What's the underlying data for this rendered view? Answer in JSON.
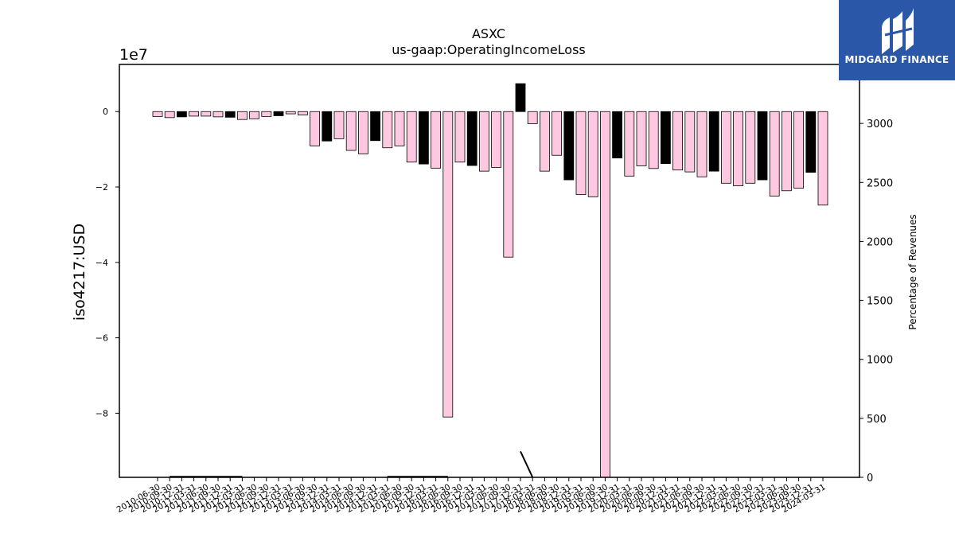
{
  "chart_data": {
    "type": "bar",
    "title": "ASXC",
    "subtitle": "us-gaap:OperatingIncomeLoss",
    "ylabel": "iso4217:USD",
    "y_offset_label": "1e7",
    "y2label": "Percentage of Revenues",
    "ylim": [
      -97000000,
      12500000
    ],
    "yticks": [
      0,
      -2,
      -4,
      -6,
      -8
    ],
    "y2lim": [
      0,
      3500
    ],
    "y2ticks": [
      0,
      500,
      1000,
      1500,
      2000,
      2500,
      3000
    ],
    "categories": [
      "2010-06-30",
      "2010-09-30",
      "2010-12-31",
      "2011-03-31",
      "2011-06-30",
      "2011-09-30",
      "2011-12-31",
      "2012-03-31",
      "2012-06-30",
      "2012-09-30",
      "2012-12-31",
      "2013-03-31",
      "2013-06-30",
      "2013-09-30",
      "2013-12-31",
      "2014-03-31",
      "2014-06-30",
      "2014-09-30",
      "2014-12-31",
      "2015-03-31",
      "2015-06-30",
      "2015-09-30",
      "2015-12-31",
      "2016-03-31",
      "2016-06-30",
      "2016-09-30",
      "2016-12-31",
      "2017-03-31",
      "2017-06-30",
      "2017-09-30",
      "2017-12-31",
      "2018-03-31",
      "2018-06-30",
      "2018-09-30",
      "2018-12-31",
      "2019-03-31",
      "2019-06-30",
      "2019-09-30",
      "2019-12-31",
      "2020-03-31",
      "2020-06-30",
      "2020-09-30",
      "2020-12-31",
      "2021-03-31",
      "2021-06-30",
      "2021-09-30",
      "2021-12-31",
      "2022-03-31",
      "2022-06-30",
      "2022-09-30",
      "2022-12-31",
      "2023-03-31",
      "2023-06-30",
      "2023-09-30",
      "2023-12-31",
      "2024-03-31"
    ],
    "values": [
      -1300000,
      -1600000,
      -1400000,
      -1200000,
      -1200000,
      -1400000,
      -1500000,
      -2100000,
      -1900000,
      -1300000,
      -1100000,
      -600000,
      -900000,
      -9100000,
      -7800000,
      -7200000,
      -10300000,
      -11200000,
      -7700000,
      -9600000,
      -9100000,
      -13400000,
      -13900000,
      -15000000,
      -81000000,
      -13400000,
      -14300000,
      -15800000,
      -14800000,
      -38600000,
      7400000,
      -3200000,
      -15800000,
      -11600000,
      -18100000,
      -22000000,
      -22600000,
      -97000000,
      -12300000,
      -17100000,
      -14400000,
      -15100000,
      -13800000,
      -15500000,
      -16000000,
      -17300000,
      -15800000,
      -19000000,
      -19700000,
      -19000000,
      -18100000,
      -22400000,
      -21000000,
      -20300000,
      -16100000,
      -24800000
    ],
    "bar_colors": [
      "#ffc8e1",
      "#ffc8e1",
      "#000000",
      "#ffc8e1",
      "#ffc8e1",
      "#ffc8e1",
      "#000000",
      "#ffc8e1",
      "#ffc8e1",
      "#ffc8e1",
      "#000000",
      "#ffc8e1",
      "#ffc8e1",
      "#ffc8e1",
      "#000000",
      "#ffc8e1",
      "#ffc8e1",
      "#ffc8e1",
      "#000000",
      "#ffc8e1",
      "#ffc8e1",
      "#ffc8e1",
      "#000000",
      "#ffc8e1",
      "#ffc8e1",
      "#ffc8e1",
      "#000000",
      "#ffc8e1",
      "#ffc8e1",
      "#ffc8e1",
      "#000000",
      "#ffc8e1",
      "#ffc8e1",
      "#ffc8e1",
      "#000000",
      "#ffc8e1",
      "#ffc8e1",
      "#ffc8e1",
      "#000000",
      "#ffc8e1",
      "#ffc8e1",
      "#ffc8e1",
      "#000000",
      "#ffc8e1",
      "#ffc8e1",
      "#ffc8e1",
      "#000000",
      "#ffc8e1",
      "#ffc8e1",
      "#ffc8e1",
      "#000000",
      "#ffc8e1",
      "#ffc8e1",
      "#ffc8e1",
      "#000000",
      "#ffc8e1"
    ],
    "percentage_series": {
      "axis": "y2",
      "values": [
        null,
        5,
        5,
        5,
        5,
        5,
        5,
        5,
        null,
        null,
        null,
        null,
        null,
        null,
        null,
        null,
        null,
        null,
        null,
        5,
        5,
        5,
        5,
        5,
        5,
        null,
        null,
        null,
        null,
        null,
        220,
        0,
        null,
        null,
        null,
        null,
        null,
        null,
        null,
        null,
        null,
        null,
        null,
        null,
        null,
        null,
        null,
        null,
        null,
        null,
        null,
        null,
        null,
        null,
        null,
        null
      ]
    },
    "grid": false,
    "legend": "none"
  },
  "watermark": {
    "text": "MIDGARD FINANCE",
    "background": "#2b57a8",
    "icon": "midgard-logo-icon"
  }
}
